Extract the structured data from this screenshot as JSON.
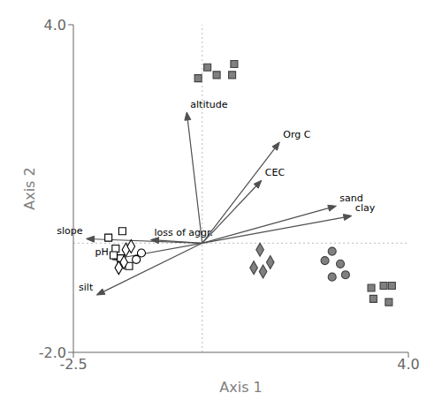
{
  "chart_data": {
    "type": "scatter",
    "xlabel": "Axis 1",
    "ylabel": "Axis 2",
    "xlim": [
      -2.5,
      4.0
    ],
    "ylim": [
      -2.0,
      4.0
    ],
    "xticks": [
      -2.5,
      {
        "value": 4.0,
        "label": "4.0"
      }
    ],
    "yticks": [
      {
        "value": -2.0,
        "label": "-2.0"
      },
      {
        "value": 4.0,
        "label": "4.0"
      }
    ],
    "grid": false,
    "reference_lines": {
      "x": 0,
      "y": 0,
      "color": "#bbbbbb",
      "line_style": "dotted"
    },
    "arrows": {
      "color": "#505050",
      "origin": [
        0,
        0
      ],
      "items": [
        {
          "text": "altitude",
          "x": -0.3,
          "y": 2.4
        },
        {
          "text": "Org C",
          "x": 1.5,
          "y": 1.85
        },
        {
          "text": "CEC",
          "x": 1.15,
          "y": 1.15
        },
        {
          "text": "sand",
          "x": 2.6,
          "y": 0.68
        },
        {
          "text": "clay",
          "x": 2.9,
          "y": 0.5
        },
        {
          "text": "slope",
          "x": -2.25,
          "y": 0.08
        },
        {
          "text": "loss of aggr.",
          "x": -1.0,
          "y": 0.06
        },
        {
          "text": "pH",
          "x": -1.75,
          "y": -0.3
        },
        {
          "text": "silt",
          "x": -2.05,
          "y": -0.95
        }
      ]
    },
    "series": [
      {
        "marker": "square",
        "color": "#ffffff",
        "x": [
          -1.55,
          -1.82,
          -1.68,
          -1.58,
          -1.42,
          -1.72
        ],
        "y": [
          0.22,
          0.1,
          -0.1,
          -0.28,
          -0.42,
          -0.22
        ]
      },
      {
        "marker": "circle",
        "color": "#ffffff",
        "x": [
          -1.28,
          -1.18
        ],
        "y": [
          -0.3,
          -0.18
        ]
      },
      {
        "marker": "diamond",
        "color": "#ffffff",
        "x": [
          -1.48,
          -1.38,
          -1.52,
          -1.62
        ],
        "y": [
          -0.12,
          -0.06,
          -0.35,
          -0.45
        ]
      },
      {
        "marker": "square",
        "color": "#808080",
        "x": [
          0.1,
          0.28,
          -0.08,
          0.62,
          0.58,
          3.28,
          3.52,
          3.68,
          3.32,
          3.62
        ],
        "y": [
          3.22,
          3.08,
          3.02,
          3.28,
          3.08,
          -0.82,
          -0.78,
          -0.78,
          -1.02,
          -1.08
        ]
      },
      {
        "marker": "circle",
        "color": "#808080",
        "x": [
          2.52,
          2.68,
          2.78,
          2.52,
          2.38
        ],
        "y": [
          -0.15,
          -0.38,
          -0.58,
          -0.62,
          -0.32
        ]
      },
      {
        "marker": "diamond",
        "color": "#808080",
        "x": [
          1.12,
          1.32,
          1.18,
          1.0
        ],
        "y": [
          -0.12,
          -0.35,
          -0.52,
          -0.45
        ]
      }
    ]
  }
}
